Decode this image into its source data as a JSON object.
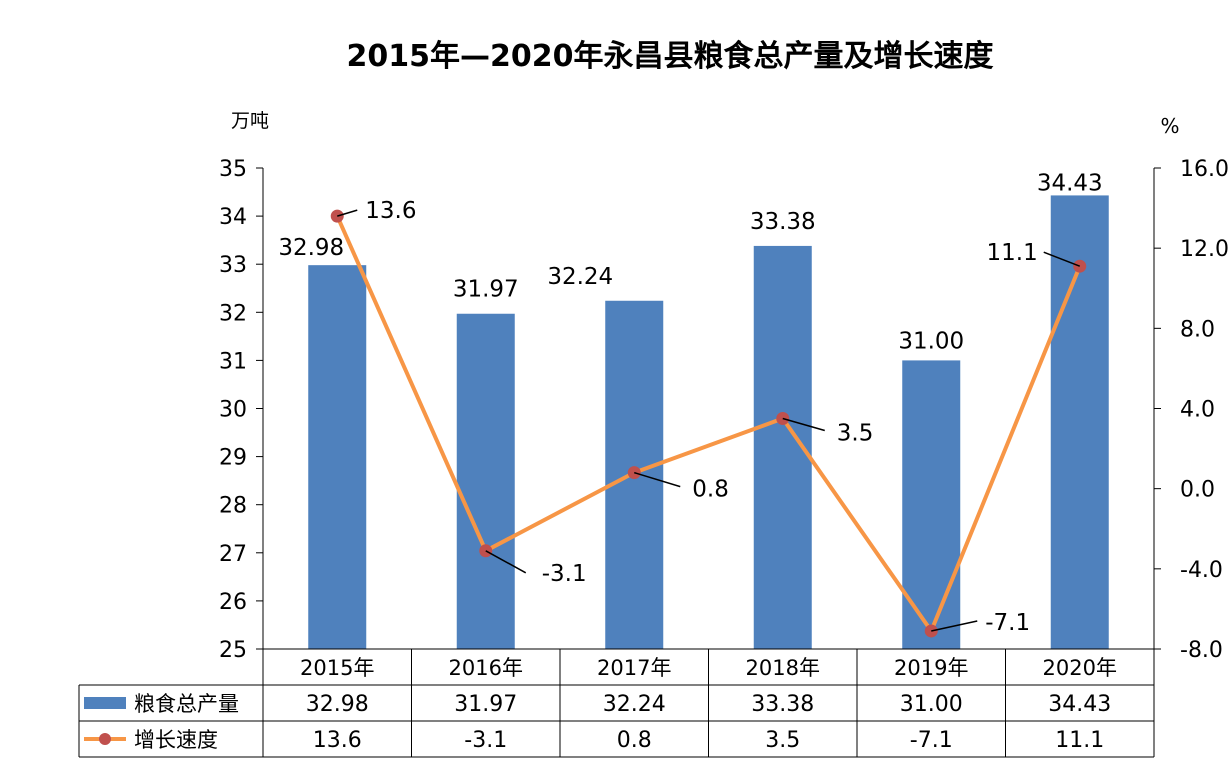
{
  "chart_data": {
    "type": "bar",
    "title": "2015年—2020年永昌县粮食总产量及增长速度",
    "categories": [
      "2015年",
      "2016年",
      "2017年",
      "2018年",
      "2019年",
      "2020年"
    ],
    "left_axis": {
      "unit": "万吨",
      "ylim": [
        25,
        35
      ],
      "ticks": [
        "25",
        "26",
        "27",
        "28",
        "29",
        "30",
        "31",
        "32",
        "33",
        "34",
        "35"
      ]
    },
    "right_axis": {
      "unit": "%",
      "ylim": [
        -8,
        16
      ],
      "ticks": [
        "-8.0",
        "-4.0",
        "0.0",
        "4.0",
        "8.0",
        "12.0",
        "16.0"
      ]
    },
    "grid": false,
    "series": [
      {
        "name": "粮食总产量",
        "type": "bar",
        "axis": "left",
        "color": "#4f81bd",
        "values": [
          32.98,
          31.97,
          32.24,
          33.38,
          31.0,
          34.43
        ],
        "labels": [
          "32.98",
          "31.97",
          "32.24",
          "33.38",
          "31.00",
          "34.43"
        ]
      },
      {
        "name": "增长速度",
        "type": "line",
        "axis": "right",
        "color": "#f79646",
        "marker_color": "#c0504d",
        "values": [
          13.6,
          -3.1,
          0.8,
          3.5,
          -7.1,
          11.1
        ],
        "labels": [
          "13.6",
          "-3.1",
          "0.8",
          "3.5",
          "-7.1",
          "11.1"
        ]
      }
    ],
    "legend_placement": "data-table-bottom"
  }
}
